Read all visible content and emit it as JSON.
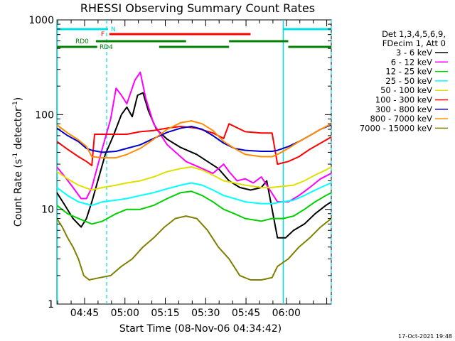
{
  "chart_data": {
    "type": "line",
    "title": "RHESSI Observing Summary Count Rates",
    "xlabel": "Start Time (08-Nov-06 04:34:42)",
    "ylabel_main": "Count Rate (s",
    "ylabel_sup1": "-1",
    "ylabel_mid": " detector",
    "ylabel_sup2": "-1",
    "ylabel_end": ")",
    "yscale": "log",
    "ylim": [
      1,
      1000
    ],
    "xlim_min": [
      0,
      102
    ],
    "x_unit": "minutes after 04:34:42",
    "y_ticks": [
      {
        "v": 1,
        "label": "1"
      },
      {
        "v": 10,
        "label": "10"
      },
      {
        "v": 100,
        "label": "100"
      },
      {
        "v": 1000,
        "label": "1000"
      }
    ],
    "x_ticks": [
      {
        "m": 10.3,
        "label": "04:45"
      },
      {
        "m": 25.3,
        "label": "05:00"
      },
      {
        "m": 40.3,
        "label": "05:15"
      },
      {
        "m": 55.3,
        "label": "05:30"
      },
      {
        "m": 70.3,
        "label": "05:45"
      },
      {
        "m": 85.3,
        "label": "06:00"
      }
    ],
    "legend_header": [
      "Det 1,3,4,5,6,9,",
      "FDecim 1, Att 0"
    ],
    "series": [
      {
        "name": "3 - 6 keV",
        "color": "#000000",
        "points": [
          [
            0,
            15
          ],
          [
            3,
            11
          ],
          [
            6,
            8
          ],
          [
            9,
            6.5
          ],
          [
            11,
            8
          ],
          [
            13,
            12
          ],
          [
            18,
            38
          ],
          [
            21,
            60
          ],
          [
            24,
            100
          ],
          [
            26,
            120
          ],
          [
            28,
            95
          ],
          [
            30,
            160
          ],
          [
            32,
            170
          ],
          [
            34,
            110
          ],
          [
            37,
            70
          ],
          [
            41,
            55
          ],
          [
            46,
            45
          ],
          [
            52,
            38
          ],
          [
            56,
            32
          ],
          [
            60,
            27
          ],
          [
            64,
            20
          ],
          [
            68,
            17
          ],
          [
            72,
            16
          ],
          [
            76,
            17
          ],
          [
            78,
            20
          ],
          [
            82,
            5
          ],
          [
            85,
            5
          ],
          [
            88,
            6
          ],
          [
            92,
            7
          ],
          [
            96,
            9
          ],
          [
            100,
            11
          ],
          [
            102,
            12
          ]
        ]
      },
      {
        "name": "6 - 12 keV",
        "color": "#ff00ff",
        "points": [
          [
            0,
            28
          ],
          [
            3,
            22
          ],
          [
            6,
            17
          ],
          [
            9,
            13
          ],
          [
            11,
            13
          ],
          [
            13,
            17
          ],
          [
            17,
            45
          ],
          [
            20,
            90
          ],
          [
            22,
            190
          ],
          [
            24,
            160
          ],
          [
            26,
            130
          ],
          [
            29,
            230
          ],
          [
            31,
            280
          ],
          [
            33,
            150
          ],
          [
            36,
            80
          ],
          [
            41,
            48
          ],
          [
            48,
            32
          ],
          [
            54,
            27
          ],
          [
            58,
            24
          ],
          [
            62,
            30
          ],
          [
            64,
            25
          ],
          [
            67,
            20
          ],
          [
            70,
            21
          ],
          [
            73,
            19
          ],
          [
            76,
            22
          ],
          [
            78,
            18
          ],
          [
            82,
            12
          ],
          [
            86,
            12
          ],
          [
            90,
            14
          ],
          [
            94,
            17
          ],
          [
            98,
            21
          ],
          [
            102,
            24
          ]
        ]
      },
      {
        "name": "12 - 25 keV",
        "color": "#00d000",
        "points": [
          [
            0,
            11
          ],
          [
            4,
            9
          ],
          [
            8,
            8
          ],
          [
            13,
            7
          ],
          [
            17,
            7.5
          ],
          [
            22,
            9
          ],
          [
            26,
            10
          ],
          [
            31,
            10
          ],
          [
            36,
            11
          ],
          [
            41,
            13
          ],
          [
            46,
            15
          ],
          [
            50,
            15.5
          ],
          [
            54,
            14
          ],
          [
            58,
            12
          ],
          [
            62,
            10
          ],
          [
            66,
            9
          ],
          [
            70,
            8
          ],
          [
            76,
            7.5
          ],
          [
            80,
            8
          ],
          [
            84,
            8
          ],
          [
            88,
            8.5
          ],
          [
            92,
            10
          ],
          [
            96,
            12
          ],
          [
            100,
            14
          ],
          [
            102,
            15
          ]
        ]
      },
      {
        "name": "25 - 50 keV",
        "color": "#00ffff",
        "points": [
          [
            0,
            17
          ],
          [
            4,
            14
          ],
          [
            8,
            12
          ],
          [
            13,
            11
          ],
          [
            17,
            12
          ],
          [
            22,
            12.5
          ],
          [
            26,
            13
          ],
          [
            31,
            14
          ],
          [
            36,
            15
          ],
          [
            41,
            16.5
          ],
          [
            46,
            18
          ],
          [
            50,
            19
          ],
          [
            54,
            18
          ],
          [
            58,
            16
          ],
          [
            62,
            14
          ],
          [
            66,
            13
          ],
          [
            70,
            12
          ],
          [
            76,
            11.5
          ],
          [
            80,
            11.5
          ],
          [
            84,
            12
          ],
          [
            88,
            12.5
          ],
          [
            92,
            14
          ],
          [
            96,
            16
          ],
          [
            100,
            18
          ],
          [
            102,
            19
          ]
        ]
      },
      {
        "name": "50 - 100 keV",
        "color": "#e0e000",
        "points": [
          [
            0,
            25
          ],
          [
            4,
            21
          ],
          [
            8,
            18
          ],
          [
            13,
            16
          ],
          [
            17,
            17
          ],
          [
            22,
            18
          ],
          [
            26,
            19
          ],
          [
            31,
            20
          ],
          [
            36,
            22
          ],
          [
            41,
            25
          ],
          [
            46,
            27
          ],
          [
            50,
            28
          ],
          [
            54,
            26
          ],
          [
            58,
            23
          ],
          [
            62,
            20
          ],
          [
            66,
            19
          ],
          [
            70,
            18
          ],
          [
            76,
            17
          ],
          [
            80,
            17
          ],
          [
            84,
            17.5
          ],
          [
            88,
            18
          ],
          [
            92,
            20
          ],
          [
            96,
            23
          ],
          [
            100,
            26
          ],
          [
            102,
            28
          ]
        ]
      },
      {
        "name": "100 - 300 keV",
        "color": "#ff0000",
        "points": [
          [
            0,
            52
          ],
          [
            4,
            43
          ],
          [
            8,
            36
          ],
          [
            11,
            32
          ],
          [
            13,
            29
          ],
          [
            14,
            62
          ],
          [
            20,
            62
          ],
          [
            26,
            62
          ],
          [
            31,
            66
          ],
          [
            36,
            68
          ],
          [
            41,
            72
          ],
          [
            46,
            75
          ],
          [
            52,
            72
          ],
          [
            58,
            64
          ],
          [
            62,
            56
          ],
          [
            64,
            80
          ],
          [
            70,
            66
          ],
          [
            76,
            64
          ],
          [
            80,
            64
          ],
          [
            82,
            30
          ],
          [
            86,
            32
          ],
          [
            90,
            36
          ],
          [
            94,
            43
          ],
          [
            98,
            50
          ],
          [
            102,
            58
          ]
        ]
      },
      {
        "name": "300 - 800 keV",
        "color": "#0000cc",
        "points": [
          [
            0,
            72
          ],
          [
            4,
            60
          ],
          [
            8,
            52
          ],
          [
            11,
            44
          ],
          [
            13,
            42
          ],
          [
            17,
            40
          ],
          [
            22,
            41
          ],
          [
            26,
            44
          ],
          [
            31,
            48
          ],
          [
            36,
            56
          ],
          [
            41,
            65
          ],
          [
            46,
            72
          ],
          [
            50,
            75
          ],
          [
            54,
            70
          ],
          [
            58,
            60
          ],
          [
            62,
            50
          ],
          [
            66,
            44
          ],
          [
            70,
            42
          ],
          [
            76,
            41
          ],
          [
            80,
            41
          ],
          [
            82,
            42
          ],
          [
            86,
            46
          ],
          [
            90,
            52
          ],
          [
            94,
            60
          ],
          [
            98,
            70
          ],
          [
            102,
            78
          ]
        ]
      },
      {
        "name": "800 - 7000 keV",
        "color": "#ff8c00",
        "points": [
          [
            0,
            78
          ],
          [
            4,
            64
          ],
          [
            8,
            54
          ],
          [
            11,
            46
          ],
          [
            13,
            36
          ],
          [
            17,
            35
          ],
          [
            22,
            35
          ],
          [
            26,
            38
          ],
          [
            31,
            44
          ],
          [
            36,
            55
          ],
          [
            41,
            70
          ],
          [
            46,
            82
          ],
          [
            50,
            86
          ],
          [
            54,
            80
          ],
          [
            58,
            68
          ],
          [
            62,
            52
          ],
          [
            66,
            44
          ],
          [
            70,
            38
          ],
          [
            76,
            36
          ],
          [
            80,
            36
          ],
          [
            82,
            38
          ],
          [
            86,
            44
          ],
          [
            90,
            52
          ],
          [
            94,
            60
          ],
          [
            98,
            70
          ],
          [
            102,
            80
          ]
        ]
      },
      {
        "name": "7000 - 15000 keV",
        "color": "#808000",
        "points": [
          [
            0,
            8
          ],
          [
            2,
            6.5
          ],
          [
            4,
            5
          ],
          [
            6,
            4
          ],
          [
            8,
            3
          ],
          [
            10,
            2
          ],
          [
            12,
            1.8
          ],
          [
            16,
            1.9
          ],
          [
            20,
            2
          ],
          [
            24,
            2.5
          ],
          [
            28,
            3
          ],
          [
            32,
            4
          ],
          [
            36,
            5
          ],
          [
            40,
            6.5
          ],
          [
            44,
            8
          ],
          [
            48,
            8.5
          ],
          [
            52,
            8
          ],
          [
            56,
            6
          ],
          [
            60,
            4
          ],
          [
            64,
            3
          ],
          [
            68,
            2
          ],
          [
            72,
            1.8
          ],
          [
            76,
            1.8
          ],
          [
            80,
            1.9
          ],
          [
            82,
            2.5
          ],
          [
            86,
            3
          ],
          [
            90,
            4
          ],
          [
            94,
            5
          ],
          [
            98,
            6.5
          ],
          [
            102,
            8
          ]
        ]
      }
    ],
    "flags": [
      {
        "label": "N",
        "color": "#00e0e0",
        "segments": [
          [
            0,
            19
          ],
          [
            84,
            102
          ]
        ]
      },
      {
        "label": "F",
        "color": "#ff0000",
        "segments": [
          [
            19.5,
            72
          ]
        ]
      },
      {
        "label": "RD0",
        "color": "#008000",
        "segments": [
          [
            14.5,
            48
          ],
          [
            64,
            86
          ]
        ]
      },
      {
        "label": "RD4",
        "color": "#008000",
        "segments": [
          [
            0,
            15
          ],
          [
            38,
            64
          ],
          [
            86,
            102
          ]
        ]
      }
    ],
    "vlines_solid": [
      0,
      84
    ],
    "vlines_dashed": [
      18.5,
      102
    ],
    "timestamp": "17-Oct-2021 19:48"
  }
}
